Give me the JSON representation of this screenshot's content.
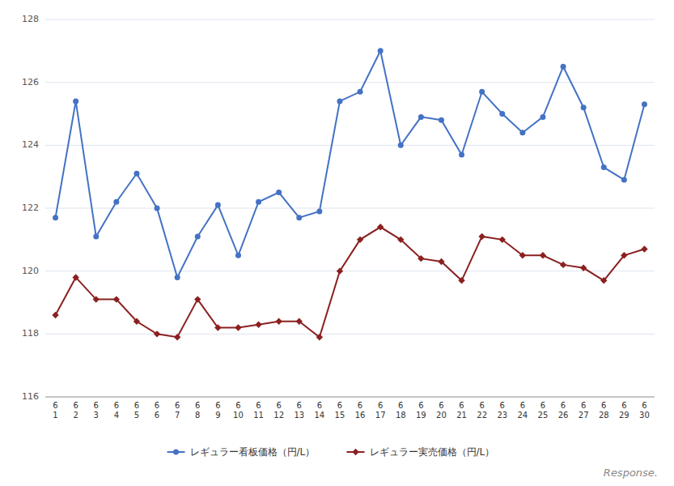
{
  "chart_data": {
    "type": "line",
    "categories": [
      "6\n1",
      "6\n2",
      "6\n3",
      "6\n4",
      "6\n5",
      "6\n6",
      "6\n7",
      "6\n8",
      "6\n9",
      "6\n10",
      "6\n11",
      "6\n12",
      "6\n13",
      "6\n14",
      "6\n15",
      "6\n16",
      "6\n17",
      "6\n18",
      "6\n19",
      "6\n20",
      "6\n21",
      "6\n22",
      "6\n23",
      "6\n24",
      "6\n25",
      "6\n26",
      "6\n27",
      "6\n28",
      "6\n29",
      "6\n30"
    ],
    "series": [
      {
        "name": "レギュラー看板価格（円/L）",
        "color": "#4472C4",
        "marker": "circle",
        "line_style": "solid",
        "values": [
          121.7,
          125.4,
          121.1,
          122.2,
          123.1,
          122.0,
          119.8,
          121.1,
          122.1,
          120.5,
          122.2,
          122.5,
          121.7,
          121.9,
          125.4,
          125.7,
          127.0,
          124.0,
          124.9,
          124.8,
          123.7,
          125.7,
          125.0,
          124.4,
          124.9,
          126.5,
          125.2,
          123.3,
          122.9,
          125.3
        ]
      },
      {
        "name": "レギュラー実売価格（円/L）",
        "color": "#8B2020",
        "marker": "diamond",
        "line_style": "solid",
        "values": [
          118.6,
          119.8,
          119.1,
          119.1,
          118.4,
          118.0,
          117.9,
          119.1,
          118.2,
          118.2,
          118.3,
          118.4,
          118.4,
          117.9,
          120.0,
          121.0,
          121.4,
          121.0,
          120.4,
          120.3,
          119.7,
          121.1,
          121.0,
          120.5,
          120.5,
          120.2,
          120.1,
          119.7,
          120.5,
          120.7
        ]
      }
    ],
    "ylim": [
      116,
      128
    ],
    "yticks": [
      116,
      118,
      120,
      122,
      124,
      126,
      128
    ],
    "grid": true,
    "legend": "bottom",
    "annotations": [
      "Response."
    ]
  }
}
